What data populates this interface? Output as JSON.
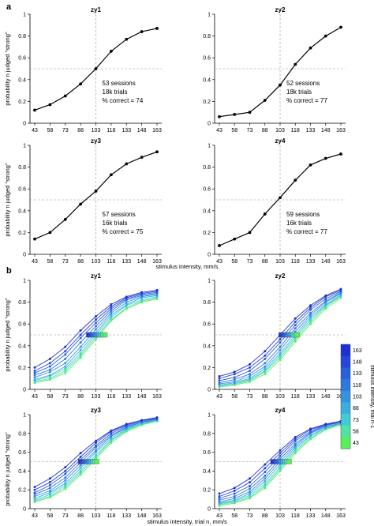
{
  "section_labels": {
    "a": "a",
    "b": "b"
  },
  "axes": {
    "x_ticks": [
      "43",
      "58",
      "73",
      "88",
      "103",
      "118",
      "133",
      "148",
      "163"
    ],
    "y_ticks": [
      "0",
      "0.2",
      "0.4",
      "0.6",
      "0.8",
      "1"
    ],
    "ylabel": "probability n judged \"strong\"",
    "xlabel_a": "stimulus intensity, mm/s",
    "xlabel_b": "stimulus intensity, trial n, mm/s"
  },
  "colorbar": {
    "label": "stimulus intensity, trial n-1",
    "ticks": [
      "163",
      "148",
      "133",
      "118",
      "103",
      "88",
      "73",
      "58",
      "43"
    ],
    "colors": [
      "#1f2fd6",
      "#2446d9",
      "#2a5fdc",
      "#2f79de",
      "#3593df",
      "#3aaede",
      "#42cbd6",
      "#50e3a6",
      "#5af05a"
    ]
  },
  "chart_data": [
    {
      "type": "line",
      "title": "zy1",
      "x": [
        43,
        58,
        73,
        88,
        103,
        118,
        133,
        148,
        163
      ],
      "series": [
        {
          "values": [
            0.12,
            0.17,
            0.25,
            0.36,
            0.5,
            0.66,
            0.77,
            0.84,
            0.87
          ]
        }
      ],
      "annotations": [
        "53 sessions",
        "18k trials",
        "% correct = 74"
      ],
      "ylim": [
        0,
        1
      ],
      "reference_lines": {
        "x": 103,
        "y": 0.5
      }
    },
    {
      "type": "line",
      "title": "zy2",
      "x": [
        43,
        58,
        73,
        88,
        103,
        118,
        133,
        148,
        163
      ],
      "series": [
        {
          "values": [
            0.06,
            0.08,
            0.1,
            0.21,
            0.35,
            0.54,
            0.69,
            0.8,
            0.88
          ]
        }
      ],
      "annotations": [
        "52 sessions",
        "18k trials",
        "% correct = 77"
      ],
      "ylim": [
        0,
        1
      ],
      "reference_lines": {
        "x": 103,
        "y": 0.5
      }
    },
    {
      "type": "line",
      "title": "zy3",
      "x": [
        43,
        58,
        73,
        88,
        103,
        118,
        133,
        148,
        163
      ],
      "series": [
        {
          "values": [
            0.14,
            0.2,
            0.32,
            0.46,
            0.58,
            0.73,
            0.83,
            0.89,
            0.94
          ]
        }
      ],
      "annotations": [
        "57 sessions",
        "16k trials",
        "% correct = 75"
      ],
      "ylim": [
        0,
        1
      ],
      "reference_lines": {
        "x": 103,
        "y": 0.5
      }
    },
    {
      "type": "line",
      "title": "zy4",
      "x": [
        43,
        58,
        73,
        88,
        103,
        118,
        133,
        148,
        163
      ],
      "series": [
        {
          "values": [
            0.08,
            0.14,
            0.2,
            0.37,
            0.52,
            0.68,
            0.82,
            0.88,
            0.92
          ]
        }
      ],
      "annotations": [
        "59 sessions",
        "16k trials",
        "% correct = 77"
      ],
      "ylim": [
        0,
        1
      ],
      "reference_lines": {
        "x": 103,
        "y": 0.5
      }
    },
    {
      "type": "line",
      "title": "zy1",
      "x": [
        43,
        58,
        73,
        88,
        103,
        118,
        133,
        148,
        163
      ],
      "series_by": "stimulus intensity, trial n-1",
      "threshold_points": [
        96,
        98,
        100,
        102,
        104,
        106,
        108,
        110,
        112
      ],
      "series": [
        {
          "values": [
            0.06,
            0.09,
            0.15,
            0.29,
            0.46,
            0.63,
            0.74,
            0.8,
            0.83
          ]
        },
        {
          "values": [
            0.07,
            0.1,
            0.17,
            0.31,
            0.48,
            0.64,
            0.75,
            0.81,
            0.84
          ]
        },
        {
          "values": [
            0.08,
            0.12,
            0.19,
            0.33,
            0.5,
            0.66,
            0.77,
            0.82,
            0.85
          ]
        },
        {
          "values": [
            0.09,
            0.13,
            0.21,
            0.36,
            0.52,
            0.68,
            0.78,
            0.84,
            0.86
          ]
        },
        {
          "values": [
            0.11,
            0.16,
            0.24,
            0.39,
            0.55,
            0.7,
            0.8,
            0.85,
            0.87
          ]
        },
        {
          "values": [
            0.13,
            0.18,
            0.28,
            0.43,
            0.58,
            0.72,
            0.82,
            0.86,
            0.88
          ]
        },
        {
          "values": [
            0.15,
            0.21,
            0.32,
            0.47,
            0.61,
            0.74,
            0.83,
            0.87,
            0.89
          ]
        },
        {
          "values": [
            0.17,
            0.24,
            0.35,
            0.5,
            0.64,
            0.76,
            0.84,
            0.88,
            0.9
          ]
        },
        {
          "values": [
            0.2,
            0.28,
            0.39,
            0.54,
            0.67,
            0.78,
            0.85,
            0.89,
            0.91
          ]
        }
      ],
      "ylim": [
        0,
        1
      ]
    },
    {
      "type": "line",
      "title": "zy2",
      "x": [
        43,
        58,
        73,
        88,
        103,
        118,
        133,
        148,
        163
      ],
      "series_by": "stimulus intensity, trial n-1",
      "threshold_points": [
        104,
        106,
        108,
        110,
        112,
        114,
        116,
        118,
        120
      ],
      "series": [
        {
          "values": [
            0.02,
            0.04,
            0.07,
            0.14,
            0.27,
            0.44,
            0.6,
            0.74,
            0.84
          ]
        },
        {
          "values": [
            0.03,
            0.05,
            0.08,
            0.16,
            0.29,
            0.46,
            0.62,
            0.76,
            0.85
          ]
        },
        {
          "values": [
            0.03,
            0.05,
            0.09,
            0.17,
            0.31,
            0.48,
            0.64,
            0.77,
            0.86
          ]
        },
        {
          "values": [
            0.04,
            0.06,
            0.1,
            0.19,
            0.33,
            0.5,
            0.66,
            0.78,
            0.87
          ]
        },
        {
          "values": [
            0.05,
            0.07,
            0.12,
            0.21,
            0.36,
            0.53,
            0.68,
            0.8,
            0.88
          ]
        },
        {
          "values": [
            0.06,
            0.09,
            0.14,
            0.24,
            0.39,
            0.56,
            0.7,
            0.81,
            0.89
          ]
        },
        {
          "values": [
            0.08,
            0.11,
            0.17,
            0.28,
            0.43,
            0.59,
            0.73,
            0.83,
            0.9
          ]
        },
        {
          "values": [
            0.1,
            0.14,
            0.2,
            0.31,
            0.46,
            0.62,
            0.75,
            0.85,
            0.91
          ]
        },
        {
          "values": [
            0.12,
            0.16,
            0.23,
            0.35,
            0.5,
            0.65,
            0.77,
            0.86,
            0.92
          ]
        }
      ],
      "ylim": [
        0,
        1
      ]
    },
    {
      "type": "line",
      "title": "zy3",
      "x": [
        43,
        58,
        73,
        88,
        103,
        118,
        133,
        148,
        163
      ],
      "series_by": "stimulus intensity, trial n-1",
      "threshold_points": [
        88,
        90,
        92,
        94,
        96,
        98,
        100,
        102,
        104
      ],
      "series": [
        {
          "values": [
            0.07,
            0.12,
            0.21,
            0.36,
            0.53,
            0.7,
            0.82,
            0.89,
            0.93
          ]
        },
        {
          "values": [
            0.08,
            0.13,
            0.23,
            0.38,
            0.55,
            0.72,
            0.83,
            0.9,
            0.93
          ]
        },
        {
          "values": [
            0.09,
            0.15,
            0.25,
            0.4,
            0.57,
            0.73,
            0.84,
            0.9,
            0.94
          ]
        },
        {
          "values": [
            0.11,
            0.17,
            0.27,
            0.43,
            0.6,
            0.75,
            0.85,
            0.91,
            0.94
          ]
        },
        {
          "values": [
            0.13,
            0.19,
            0.3,
            0.46,
            0.62,
            0.77,
            0.86,
            0.92,
            0.95
          ]
        },
        {
          "values": [
            0.15,
            0.22,
            0.33,
            0.49,
            0.65,
            0.78,
            0.87,
            0.92,
            0.95
          ]
        },
        {
          "values": [
            0.17,
            0.25,
            0.37,
            0.52,
            0.67,
            0.8,
            0.88,
            0.93,
            0.96
          ]
        },
        {
          "values": [
            0.2,
            0.28,
            0.4,
            0.55,
            0.7,
            0.82,
            0.89,
            0.94,
            0.96
          ]
        },
        {
          "values": [
            0.23,
            0.32,
            0.44,
            0.59,
            0.72,
            0.83,
            0.9,
            0.94,
            0.97
          ]
        }
      ],
      "ylim": [
        0,
        1
      ]
    },
    {
      "type": "line",
      "title": "zy4",
      "x": [
        43,
        58,
        73,
        88,
        103,
        118,
        133,
        148,
        163
      ],
      "series_by": "stimulus intensity, trial n-1",
      "threshold_points": [
        96,
        98,
        100,
        102,
        104,
        106,
        108,
        110,
        112
      ],
      "series": [
        {
          "values": [
            0.03,
            0.06,
            0.11,
            0.22,
            0.4,
            0.59,
            0.74,
            0.84,
            0.89
          ]
        },
        {
          "values": [
            0.04,
            0.07,
            0.12,
            0.24,
            0.42,
            0.61,
            0.75,
            0.85,
            0.9
          ]
        },
        {
          "values": [
            0.05,
            0.08,
            0.14,
            0.26,
            0.44,
            0.63,
            0.77,
            0.86,
            0.9
          ]
        },
        {
          "values": [
            0.06,
            0.09,
            0.16,
            0.29,
            0.47,
            0.65,
            0.78,
            0.86,
            0.91
          ]
        },
        {
          "values": [
            0.07,
            0.11,
            0.18,
            0.32,
            0.5,
            0.67,
            0.8,
            0.87,
            0.91
          ]
        },
        {
          "values": [
            0.09,
            0.13,
            0.21,
            0.35,
            0.53,
            0.69,
            0.81,
            0.88,
            0.92
          ]
        },
        {
          "values": [
            0.11,
            0.16,
            0.24,
            0.39,
            0.56,
            0.72,
            0.82,
            0.89,
            0.92
          ]
        },
        {
          "values": [
            0.13,
            0.19,
            0.28,
            0.43,
            0.59,
            0.74,
            0.84,
            0.89,
            0.93
          ]
        },
        {
          "values": [
            0.16,
            0.22,
            0.32,
            0.47,
            0.62,
            0.76,
            0.85,
            0.9,
            0.93
          ]
        }
      ],
      "ylim": [
        0,
        1
      ]
    }
  ]
}
